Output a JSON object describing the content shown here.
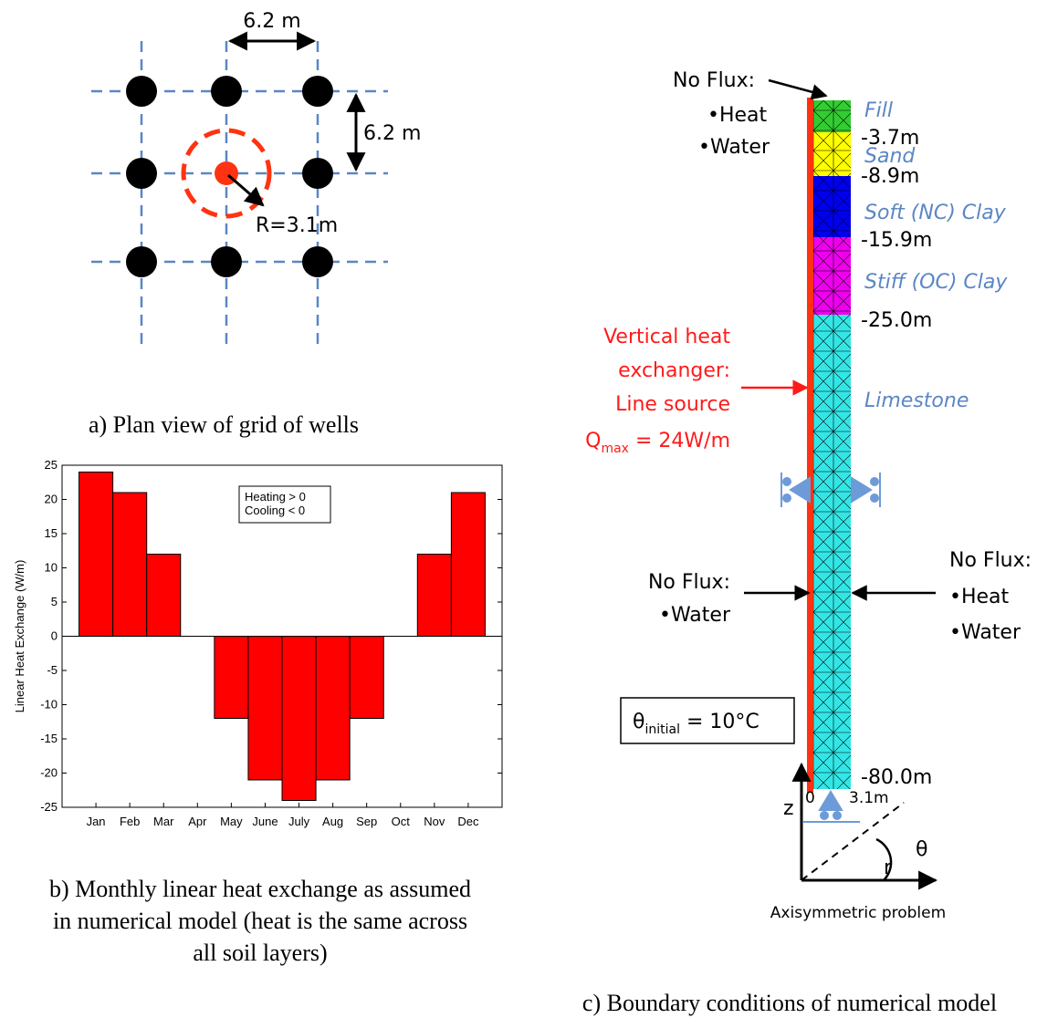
{
  "panel_a": {
    "spacing_top": "6.2 m",
    "spacing_side": "6.2 m",
    "radius": "R=3.1m",
    "caption": "a) Plan view of grid of wells"
  },
  "chart_data": {
    "type": "bar",
    "categories": [
      "Jan",
      "Feb",
      "Mar",
      "Apr",
      "May",
      "June",
      "July",
      "Aug",
      "Sep",
      "Oct",
      "Nov",
      "Dec"
    ],
    "values": [
      24,
      21,
      12,
      0,
      -12,
      -21,
      -24,
      -21,
      -12,
      0,
      12,
      21
    ],
    "color": "#ff0000",
    "ylim": [
      -25,
      25
    ],
    "yticks": [
      -25,
      -20,
      -15,
      -10,
      -5,
      0,
      5,
      10,
      15,
      20,
      25
    ],
    "ylabel": "Linear Heat Exchange (W/m)",
    "legend_lines": [
      "Heating > 0",
      "Cooling < 0"
    ],
    "grid": false,
    "caption": [
      "b) Monthly linear heat exchange as assumed",
      "in numerical model (heat is the same across",
      "all soil layers)"
    ]
  },
  "panel_c": {
    "top_flux": [
      "No Flux:",
      "•Heat",
      "•Water"
    ],
    "layers": [
      {
        "name": "Fill",
        "color": "#33cc33"
      },
      {
        "name": "Sand",
        "color": "#ffff00"
      },
      {
        "name": "Soft (NC) Clay",
        "color": "#0000ee"
      },
      {
        "name": "Stiff (OC) Clay",
        "color": "#ee00ee"
      },
      {
        "name": "Limestone",
        "color": "#33e6e6"
      }
    ],
    "depths": [
      "-3.7m",
      "-8.9m",
      "-15.9m",
      "-25.0m",
      "-80.0m"
    ],
    "exchanger": [
      "Vertical heat",
      "exchanger:",
      "Line source"
    ],
    "q_symbol": "Q",
    "q_sub": "max",
    "q_value": " = 24W/m",
    "left_flux": [
      "No Flux:",
      "•Water"
    ],
    "right_flux": [
      "No Flux:",
      "•Heat",
      "•Water"
    ],
    "theta_symbol": "θ",
    "theta_sub": "initial",
    "theta_value": " = 10°C",
    "axis_z": "z",
    "axis_r": "r",
    "origin": "0",
    "width": "3.1m",
    "angle": "θ",
    "problem": "Axisymmetric problem",
    "caption": "c) Boundary conditions of numerical model"
  }
}
